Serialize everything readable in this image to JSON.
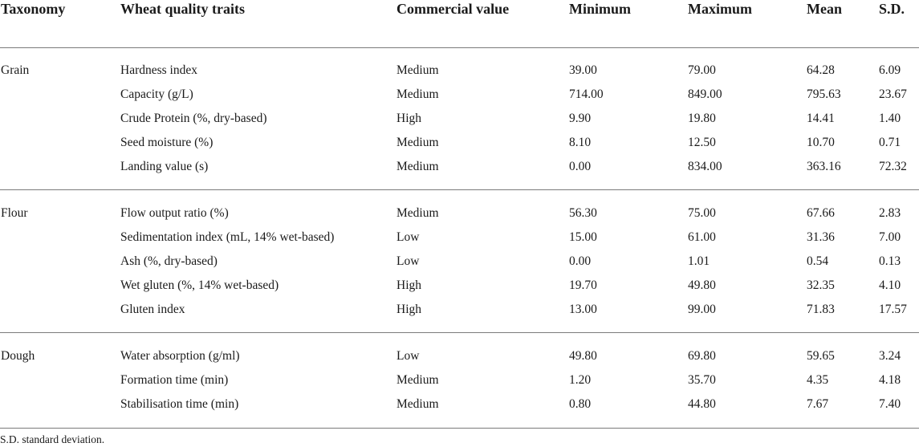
{
  "headers": [
    "Taxonomy",
    "Wheat quality traits",
    "Commercial value",
    "Minimum",
    "Maximum",
    "Mean",
    "S.D."
  ],
  "groups": [
    {
      "taxonomy": "Grain",
      "rows": [
        [
          "Hardness index",
          "Medium",
          "39.00",
          "79.00",
          "64.28",
          "6.09"
        ],
        [
          "Capacity (g/L)",
          "Medium",
          "714.00",
          "849.00",
          "795.63",
          "23.67"
        ],
        [
          "Crude Protein (%, dry-based)",
          "High",
          "9.90",
          "19.80",
          "14.41",
          "1.40"
        ],
        [
          "Seed moisture (%)",
          "Medium",
          "8.10",
          "12.50",
          "10.70",
          "0.71"
        ],
        [
          "Landing value (s)",
          "Medium",
          "0.00",
          "834.00",
          "363.16",
          "72.32"
        ]
      ]
    },
    {
      "taxonomy": "Flour",
      "rows": [
        [
          "Flow output ratio (%)",
          "Medium",
          "56.30",
          "75.00",
          "67.66",
          "2.83"
        ],
        [
          "Sedimentation index (mL, 14% wet-based)",
          "Low",
          "15.00",
          "61.00",
          "31.36",
          "7.00"
        ],
        [
          "Ash (%, dry-based)",
          "Low",
          "0.00",
          "1.01",
          "0.54",
          "0.13"
        ],
        [
          "Wet gluten (%, 14% wet-based)",
          "High",
          "19.70",
          "49.80",
          "32.35",
          "4.10"
        ],
        [
          "Gluten index",
          "High",
          "13.00",
          "99.00",
          "71.83",
          "17.57"
        ]
      ]
    },
    {
      "taxonomy": "Dough",
      "rows": [
        [
          "Water absorption (g/ml)",
          "Low",
          "49.80",
          "69.80",
          "59.65",
          "3.24"
        ],
        [
          "Formation time (min)",
          "Medium",
          "1.20",
          "35.70",
          "4.35",
          "4.18"
        ],
        [
          "Stabilisation time (min)",
          "Medium",
          "0.80",
          "44.80",
          "7.67",
          "7.40"
        ]
      ]
    }
  ],
  "footnote": "S.D. standard deviation."
}
